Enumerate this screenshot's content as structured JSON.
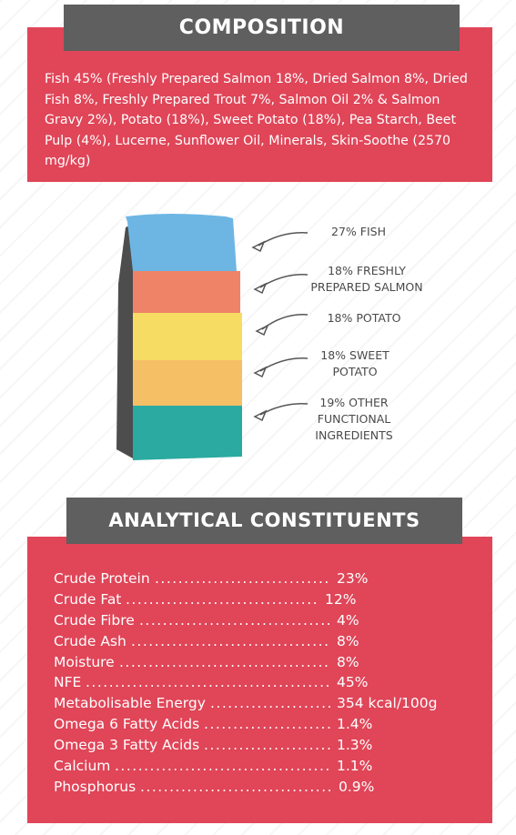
{
  "composition": {
    "heading": "COMPOSITION",
    "text": "Fish 45% (Freshly Prepared Salmon 18%, Dried Salmon 8%, Dried Fish 8%, Freshly Prepared Trout 7%, Salmon Oil 2% & Salmon Gravy 2%), Potato (18%), Sweet Potato (18%), Pea Starch, Beet Pulp (4%), Lucerne, Sunflower Oil, Minerals, Skin-Soothe (2570 mg/kg)"
  },
  "bag": {
    "layers": [
      {
        "color": "#6db6e4",
        "label_line1": "27% FISH",
        "label_line2": "",
        "label_line3": ""
      },
      {
        "color": "#ee8367",
        "label_line1": "18% FRESHLY",
        "label_line2": "PREPARED SALMON",
        "label_line3": ""
      },
      {
        "color": "#f6dc62",
        "label_line1": "18% POTATO",
        "label_line2": "",
        "label_line3": ""
      },
      {
        "color": "#f5bf66",
        "label_line1": "18% SWEET",
        "label_line2": "POTATO",
        "label_line3": ""
      },
      {
        "color": "#2aaaa0",
        "label_line1": "19% OTHER",
        "label_line2": "FUNCTIONAL",
        "label_line3": "INGREDIENTS"
      }
    ]
  },
  "analytical": {
    "heading": "ANALYTICAL CONSTITUENTS",
    "rows": [
      {
        "name": "Crude Protein",
        "value": "23%"
      },
      {
        "name": "Crude Fat",
        "value": "12%"
      },
      {
        "name": "Crude Fibre",
        "value": "4%"
      },
      {
        "name": "Crude Ash",
        "value": "8%"
      },
      {
        "name": "Moisture",
        "value": "8%"
      },
      {
        "name": "NFE",
        "value": "45%"
      },
      {
        "name": "Metabolisable Energy",
        "value": "354 kcal/100g"
      },
      {
        "name": "Omega 6 Fatty Acids",
        "value": "1.4%"
      },
      {
        "name": "Omega 3 Fatty Acids",
        "value": "1.3%"
      },
      {
        "name": "Calcium",
        "value": "1.1%"
      },
      {
        "name": "Phosphorus",
        "value": "0.9%"
      }
    ]
  }
}
